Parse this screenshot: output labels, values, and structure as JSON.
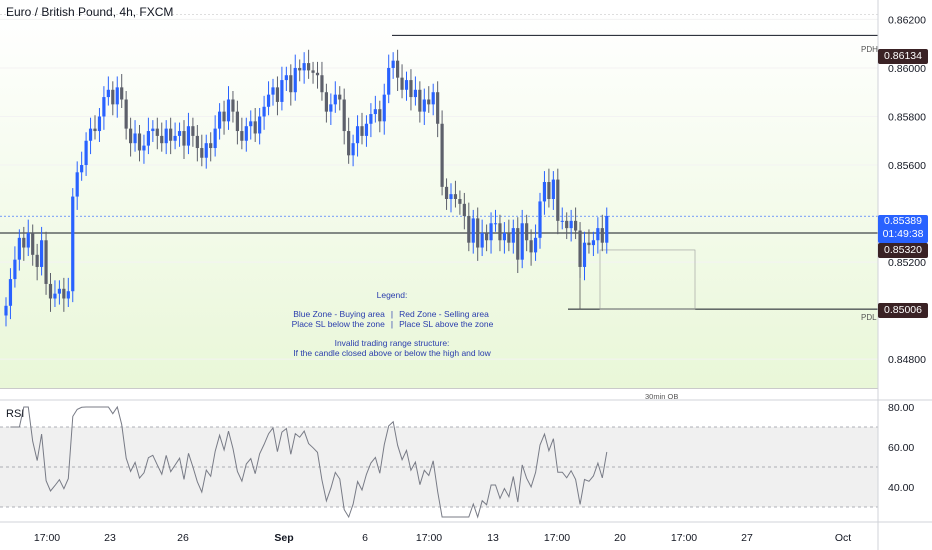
{
  "header": {
    "title": "Euro / British Pound, 4h, FXCM"
  },
  "rsi": {
    "label": "RSI"
  },
  "price_axis": [
    "0.86200",
    "0.86000",
    "0.85800",
    "0.85600",
    "0.85200",
    "0.84800"
  ],
  "rsi_axis": [
    "80.00",
    "60.00",
    "40.00"
  ],
  "time_axis": [
    "17:00",
    "23",
    "26",
    "Sep",
    "6",
    "17:00",
    "13",
    "17:00",
    "20",
    "17:00",
    "27",
    "Oct"
  ],
  "badges": {
    "pdh_price": "0.86134",
    "last_price": "0.85389",
    "countdown": "01:49:38",
    "line_price": "0.85320",
    "pdl_price": "0.85006"
  },
  "levels": {
    "pdh": "PDH",
    "pdl": "PDL",
    "ob": "30min OB"
  },
  "legend": {
    "title": "Legend:",
    "blue_zone": "Blue Zone - Buying area",
    "red_zone": "Red Zone - Selling area",
    "blue_sl": "Place SL below the zone",
    "red_sl": "Place SL above the zone",
    "sep": "|",
    "invalid_title": "Invalid trading range structure:",
    "invalid_text": "If the candle closed above or below the high and low"
  },
  "colors": {
    "up": "#2962ff",
    "down": "#5d606b",
    "bg_zone": "#e9f7d8",
    "rsi_band": "#f0f0f0"
  },
  "chart_data": {
    "type": "candlestick",
    "title": "Euro / British Pound, 4h, FXCM",
    "ylim": [
      0.8464,
      0.8628
    ],
    "levels": {
      "PDH": 0.86134,
      "current": 0.85389,
      "line": 0.8532,
      "PDL": 0.85006
    },
    "close": [
      0.8502,
      0.8513,
      0.8521,
      0.853,
      0.8526,
      0.8532,
      0.8523,
      0.8518,
      0.8529,
      0.8511,
      0.8505,
      0.8507,
      0.8509,
      0.8505,
      0.8508,
      0.8547,
      0.8557,
      0.856,
      0.857,
      0.8575,
      0.8574,
      0.858,
      0.8588,
      0.8591,
      0.8585,
      0.8592,
      0.8587,
      0.8575,
      0.8569,
      0.8573,
      0.8566,
      0.8568,
      0.8574,
      0.8575,
      0.8572,
      0.8569,
      0.8575,
      0.857,
      0.8572,
      0.8574,
      0.8568,
      0.8576,
      0.8572,
      0.8567,
      0.8563,
      0.8569,
      0.8567,
      0.8575,
      0.8582,
      0.8578,
      0.8587,
      0.8582,
      0.8574,
      0.857,
      0.8576,
      0.8578,
      0.8573,
      0.858,
      0.8584,
      0.8589,
      0.8592,
      0.8586,
      0.8595,
      0.8597,
      0.859,
      0.86,
      0.8599,
      0.8602,
      0.8599,
      0.8598,
      0.8597,
      0.859,
      0.8582,
      0.8585,
      0.8589,
      0.8587,
      0.8574,
      0.8564,
      0.8569,
      0.8576,
      0.8572,
      0.8577,
      0.8581,
      0.8583,
      0.8578,
      0.8589,
      0.86,
      0.8603,
      0.8596,
      0.8591,
      0.8595,
      0.8588,
      0.8591,
      0.8582,
      0.8587,
      0.8585,
      0.859,
      0.8577,
      0.8551,
      0.8546,
      0.8548,
      0.8546,
      0.8544,
      0.8539,
      0.8528,
      0.8538,
      0.8526,
      0.8532,
      0.8529,
      0.8536,
      0.8536,
      0.8529,
      0.8532,
      0.8528,
      0.8534,
      0.8521,
      0.8536,
      0.8529,
      0.8524,
      0.853,
      0.8545,
      0.8553,
      0.8546,
      0.8554,
      0.8537,
      0.8537,
      0.8534,
      0.8537,
      0.8533,
      0.8518,
      0.8528,
      0.8527,
      0.8529,
      0.8534,
      0.8528,
      0.8539
    ]
  }
}
